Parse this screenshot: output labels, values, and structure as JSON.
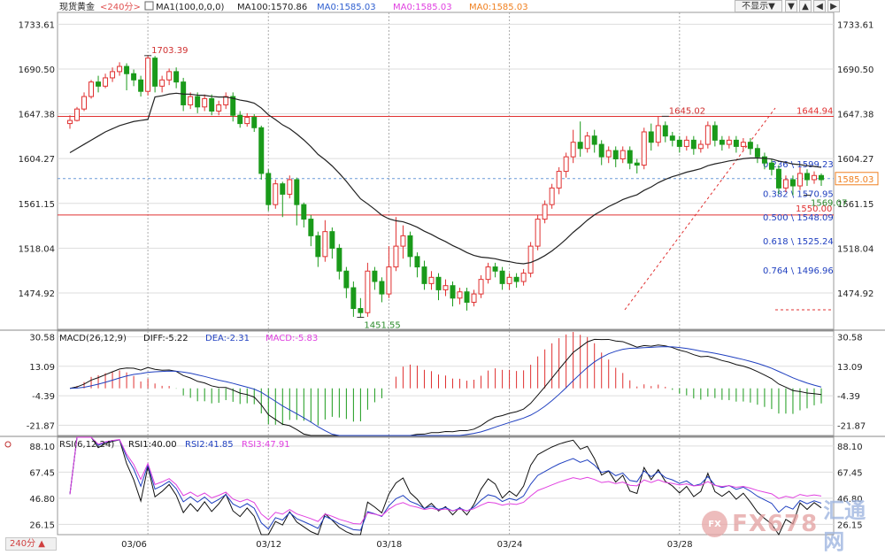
{
  "toolbar": {
    "display_button": "不显示▼",
    "btn_down": "▼",
    "btn_up": "▲",
    "btn_left": "◀",
    "btn_right": "▶"
  },
  "timeframe_button": "240分 ▲",
  "watermark": {
    "brand": "FX678",
    "cn": "汇通网",
    "circle": "FX"
  },
  "colors": {
    "up": "#e03030",
    "down": "#1a9a1a",
    "ma100": "#222222",
    "ma0": "#3060d0",
    "diff": "#111111",
    "dea": "#2040c0",
    "rsi1": "#111111",
    "rsi2": "#2040c0",
    "rsi3": "#e040e0",
    "fib": "#e03030",
    "grid": "#dddddd"
  },
  "chart_data": {
    "type": "candlestick",
    "title": "现货黄金",
    "timeframe": "<240分>",
    "main_legend": [
      {
        "text": "MA1(100,0,0,0)",
        "color": "#222222"
      },
      {
        "text": "MA100:1570.86",
        "color": "#222222"
      },
      {
        "text": "MA0:1585.03",
        "color": "#3060d0"
      },
      {
        "text": "MA0:1585.03",
        "color": "#e040e0"
      },
      {
        "text": "MA0:1585.03",
        "color": "#f08020"
      }
    ],
    "x_labels": [
      "03/06",
      "03/12",
      "03/18",
      "03/24",
      "03/28"
    ],
    "y_ticks": [
      1733.61,
      1690.5,
      1647.38,
      1604.27,
      1561.15,
      1518.04,
      1474.92
    ],
    "y_tick_labels": [
      "1733.61",
      "1690.50",
      "1647.38",
      "1604.27",
      "1561.15",
      "1518.04",
      "1474.92"
    ],
    "price_range": [
      1440,
      1745
    ],
    "current_price": 1585.03,
    "current_price_label": "1585.03",
    "annotations": [
      {
        "label": "1703.39",
        "value": 1703.39,
        "bar": 11,
        "color": "#d03030"
      },
      {
        "label": "1451.55",
        "value": 1451.55,
        "bar": 41,
        "color": "#2a8a2a"
      },
      {
        "label": "1645.02",
        "value": 1645.02,
        "bar": 84,
        "color": "#d03030"
      },
      {
        "label": "1569.07",
        "value": 1569.07,
        "bar": 104,
        "color": "#2a8a2a"
      }
    ],
    "horizontal_lines": [
      {
        "value": 1644.94,
        "label": "1644.94",
        "color": "#e03030"
      },
      {
        "value": 1550.0,
        "label": "1550.00",
        "color": "#e03030"
      }
    ],
    "fibonacci": [
      {
        "label": "0.236 \\ 1599.23",
        "value": 1599.23
      },
      {
        "label": "0.382 \\ 1570.95",
        "value": 1570.95
      },
      {
        "label": "0.500 \\ 1548.09",
        "value": 1548.09
      },
      {
        "label": "0.618 \\ 1525.24",
        "value": 1525.24
      },
      {
        "label": "0.764 \\ 1496.96",
        "value": 1496.96
      }
    ],
    "candles": [
      [
        1638,
        1641,
        1633,
        1646
      ],
      [
        1641,
        1652,
        1640,
        1654
      ],
      [
        1652,
        1664,
        1650,
        1668
      ],
      [
        1664,
        1678,
        1662,
        1680
      ],
      [
        1678,
        1674,
        1668,
        1684
      ],
      [
        1674,
        1682,
        1672,
        1686
      ],
      [
        1682,
        1688,
        1678,
        1692
      ],
      [
        1688,
        1693,
        1684,
        1697
      ],
      [
        1693,
        1686,
        1670,
        1696
      ],
      [
        1686,
        1680,
        1674,
        1690
      ],
      [
        1680,
        1669,
        1664,
        1684
      ],
      [
        1669,
        1701,
        1665,
        1704
      ],
      [
        1701,
        1674,
        1668,
        1703
      ],
      [
        1674,
        1680,
        1668,
        1684
      ],
      [
        1680,
        1688,
        1675,
        1691
      ],
      [
        1688,
        1678,
        1672,
        1692
      ],
      [
        1678,
        1656,
        1650,
        1682
      ],
      [
        1656,
        1664,
        1652,
        1668
      ],
      [
        1664,
        1654,
        1648,
        1668
      ],
      [
        1654,
        1662,
        1650,
        1666
      ],
      [
        1662,
        1650,
        1646,
        1666
      ],
      [
        1650,
        1656,
        1646,
        1660
      ],
      [
        1656,
        1664,
        1652,
        1668
      ],
      [
        1664,
        1646,
        1640,
        1668
      ],
      [
        1646,
        1638,
        1634,
        1650
      ],
      [
        1638,
        1644,
        1635,
        1648
      ],
      [
        1644,
        1634,
        1630,
        1647
      ],
      [
        1634,
        1590,
        1584,
        1636
      ],
      [
        1590,
        1560,
        1554,
        1594
      ],
      [
        1560,
        1580,
        1556,
        1584
      ],
      [
        1580,
        1570,
        1548,
        1582
      ],
      [
        1570,
        1584,
        1566,
        1588
      ],
      [
        1584,
        1560,
        1540,
        1586
      ],
      [
        1560,
        1546,
        1538,
        1562
      ],
      [
        1546,
        1530,
        1520,
        1550
      ],
      [
        1530,
        1510,
        1500,
        1534
      ],
      [
        1510,
        1534,
        1505,
        1545
      ],
      [
        1534,
        1518,
        1508,
        1538
      ],
      [
        1518,
        1496,
        1488,
        1522
      ],
      [
        1496,
        1480,
        1470,
        1500
      ],
      [
        1480,
        1460,
        1452,
        1486
      ],
      [
        1460,
        1456,
        1451,
        1470
      ],
      [
        1456,
        1496,
        1452,
        1504
      ],
      [
        1496,
        1486,
        1478,
        1500
      ],
      [
        1486,
        1474,
        1466,
        1490
      ],
      [
        1474,
        1500,
        1470,
        1520
      ],
      [
        1500,
        1520,
        1496,
        1548
      ],
      [
        1520,
        1530,
        1508,
        1540
      ],
      [
        1530,
        1510,
        1500,
        1534
      ],
      [
        1510,
        1500,
        1490,
        1514
      ],
      [
        1500,
        1484,
        1478,
        1506
      ],
      [
        1484,
        1490,
        1478,
        1496
      ],
      [
        1490,
        1478,
        1468,
        1494
      ],
      [
        1478,
        1482,
        1472,
        1488
      ],
      [
        1482,
        1470,
        1462,
        1486
      ],
      [
        1470,
        1476,
        1464,
        1480
      ],
      [
        1476,
        1466,
        1458,
        1480
      ],
      [
        1466,
        1474,
        1462,
        1478
      ],
      [
        1474,
        1488,
        1470,
        1492
      ],
      [
        1488,
        1500,
        1484,
        1504
      ],
      [
        1500,
        1496,
        1490,
        1504
      ],
      [
        1496,
        1484,
        1478,
        1500
      ],
      [
        1484,
        1490,
        1478,
        1494
      ],
      [
        1490,
        1486,
        1480,
        1494
      ],
      [
        1486,
        1494,
        1482,
        1498
      ],
      [
        1494,
        1520,
        1490,
        1524
      ],
      [
        1520,
        1546,
        1516,
        1550
      ],
      [
        1546,
        1560,
        1542,
        1564
      ],
      [
        1560,
        1576,
        1556,
        1580
      ],
      [
        1576,
        1592,
        1570,
        1596
      ],
      [
        1592,
        1606,
        1586,
        1610
      ],
      [
        1606,
        1620,
        1600,
        1632
      ],
      [
        1620,
        1614,
        1606,
        1640
      ],
      [
        1614,
        1626,
        1610,
        1630
      ],
      [
        1626,
        1618,
        1610,
        1632
      ],
      [
        1618,
        1606,
        1598,
        1622
      ],
      [
        1606,
        1612,
        1600,
        1616
      ],
      [
        1612,
        1604,
        1596,
        1616
      ],
      [
        1604,
        1612,
        1600,
        1616
      ],
      [
        1612,
        1600,
        1594,
        1616
      ],
      [
        1600,
        1598,
        1590,
        1604
      ],
      [
        1598,
        1630,
        1594,
        1634
      ],
      [
        1630,
        1620,
        1612,
        1638
      ],
      [
        1620,
        1636,
        1616,
        1645
      ],
      [
        1636,
        1626,
        1620,
        1640
      ],
      [
        1626,
        1622,
        1616,
        1630
      ],
      [
        1622,
        1616,
        1610,
        1626
      ],
      [
        1616,
        1622,
        1612,
        1626
      ],
      [
        1622,
        1614,
        1608,
        1626
      ],
      [
        1614,
        1618,
        1610,
        1622
      ],
      [
        1618,
        1636,
        1614,
        1640
      ],
      [
        1636,
        1622,
        1616,
        1640
      ],
      [
        1622,
        1618,
        1612,
        1626
      ],
      [
        1618,
        1622,
        1614,
        1626
      ],
      [
        1622,
        1616,
        1610,
        1626
      ],
      [
        1616,
        1620,
        1612,
        1624
      ],
      [
        1620,
        1614,
        1608,
        1624
      ],
      [
        1614,
        1606,
        1600,
        1618
      ],
      [
        1606,
        1600,
        1594,
        1610
      ],
      [
        1600,
        1594,
        1588,
        1604
      ],
      [
        1594,
        1576,
        1570,
        1598
      ],
      [
        1576,
        1584,
        1572,
        1588
      ],
      [
        1584,
        1578,
        1569,
        1588
      ],
      [
        1578,
        1590,
        1574,
        1596
      ],
      [
        1590,
        1584,
        1578,
        1594
      ],
      [
        1584,
        1588,
        1580,
        1592
      ],
      [
        1588,
        1584,
        1578,
        1590
      ]
    ],
    "macd": {
      "legend": [
        {
          "text": "MACD(26,12,9)",
          "color": "#222222"
        },
        {
          "text": "DIFF:-5.22",
          "color": "#111111"
        },
        {
          "text": "DEA:-2.31",
          "color": "#2040c0"
        },
        {
          "text": "MACD:-5.83",
          "color": "#e040e0"
        }
      ],
      "y_ticks": [
        30.58,
        13.09,
        -4.39,
        -21.87
      ],
      "y_tick_labels": [
        "30.58",
        "13.09",
        "-4.39",
        "-21.87"
      ],
      "range": [
        -28,
        34
      ]
    },
    "rsi": {
      "legend": [
        {
          "text": "RSI(6,12,24)",
          "color": "#222222"
        },
        {
          "text": "RSI1:40.00",
          "color": "#111111"
        },
        {
          "text": "RSI2:41.85",
          "color": "#2040c0"
        },
        {
          "text": "RSI3:47.91",
          "color": "#e040e0"
        }
      ],
      "y_ticks": [
        88.1,
        67.45,
        46.8,
        26.15
      ],
      "y_tick_labels": [
        "88.10",
        "67.45",
        "46.80",
        "26.15"
      ],
      "range": [
        18,
        95
      ]
    }
  }
}
